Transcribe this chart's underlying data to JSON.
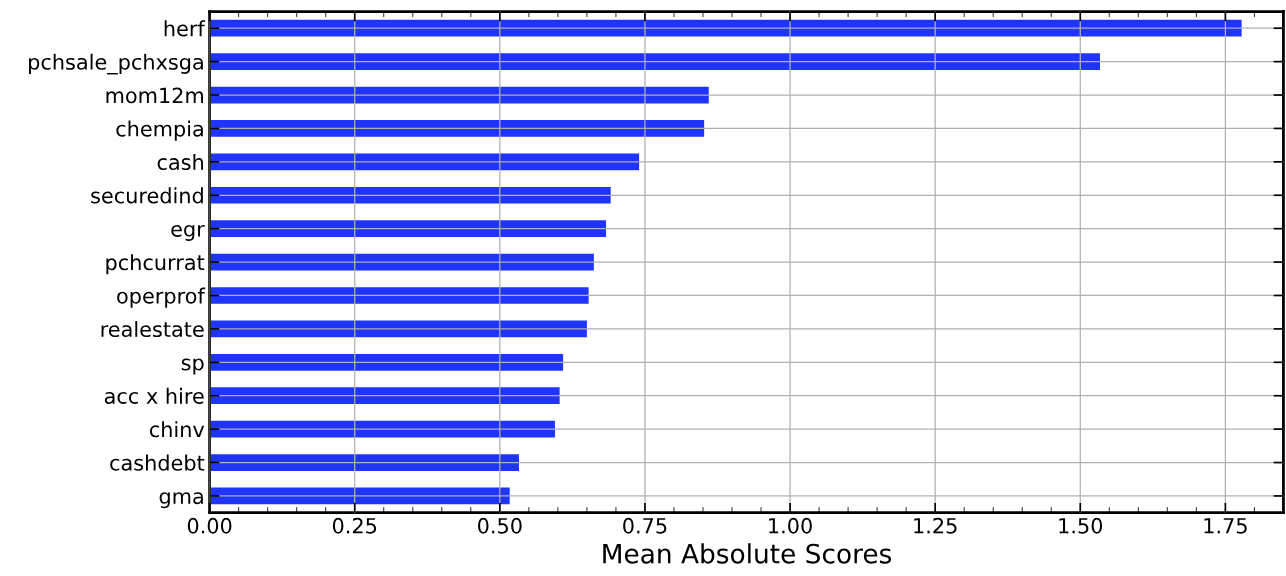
{
  "chart_data": {
    "type": "bar",
    "orientation": "horizontal",
    "xlabel": "Mean Absolute Scores",
    "categories": [
      "herf",
      "pchsale_pchxsga",
      "mom12m",
      "chempia",
      "cash",
      "securedind",
      "egr",
      "pchcurrat",
      "operprof",
      "realestate",
      "sp",
      "acc x hire",
      "chinv",
      "cashdebt",
      "gma"
    ],
    "series": [
      {
        "color": "#1f35ff",
        "values": [
          1.778,
          1.534,
          0.86,
          0.852,
          0.74,
          0.691,
          0.683,
          0.662,
          0.653,
          0.65,
          0.609,
          0.603,
          0.595,
          0.533,
          0.517
        ]
      }
    ],
    "xlim": [
      0,
      1.85
    ],
    "xticks": [
      {
        "value": 0,
        "label": "0.00"
      },
      {
        "value": 0.25,
        "label": "0.25"
      },
      {
        "value": 0.5,
        "label": "0.50"
      },
      {
        "value": 0.75,
        "label": "0.75"
      },
      {
        "value": 1.0,
        "label": "1.00"
      },
      {
        "value": 1.25,
        "label": "1.25"
      },
      {
        "value": 1.5,
        "label": "1.50"
      },
      {
        "value": 1.75,
        "label": "1.75"
      }
    ],
    "grid": true
  }
}
